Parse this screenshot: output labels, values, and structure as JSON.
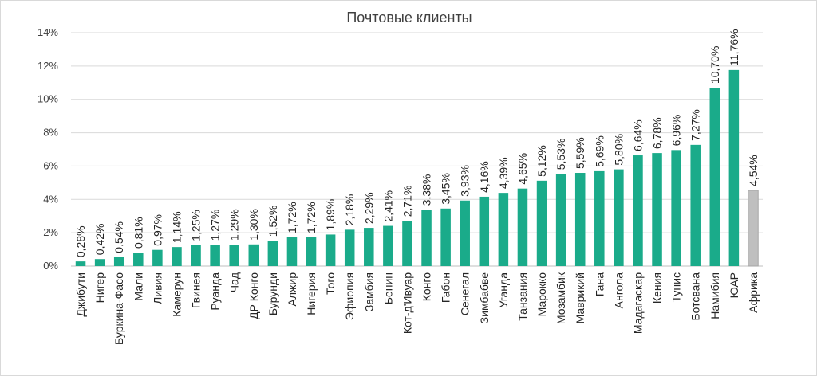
{
  "chart_data": {
    "type": "bar",
    "title": "Почтовые клиенты",
    "xlabel": "",
    "ylabel": "",
    "ylim": [
      0,
      14
    ],
    "yticks": [
      "0%",
      "2%",
      "4%",
      "6%",
      "8%",
      "10%",
      "12%",
      "14%"
    ],
    "grid": true,
    "legend": "none",
    "colors": {
      "bar": "#1aab8a",
      "highlight": "#bfbfbf",
      "grid": "#d9d9d9",
      "text": "#404040"
    },
    "categories": [
      "Джибути",
      "Нигер",
      "Буркина-Фасо",
      "Мали",
      "Ливия",
      "Камерун",
      "Гвинея",
      "Руанда",
      "Чад",
      "ДР Конго",
      "Бурунди",
      "Алжир",
      "Нигерия",
      "Того",
      "Эфиопия",
      "Замбия",
      "Бенин",
      "Кот-д'Ивуар",
      "Конго",
      "Габон",
      "Сенегал",
      "Зимбабве",
      "Уганда",
      "Танзания",
      "Марокко",
      "Мозамбик",
      "Маврикий",
      "Гана",
      "Ангола",
      "Мадагаскар",
      "Кения",
      "Тунис",
      "Ботсвана",
      "Намибия",
      "ЮАР",
      "Африка"
    ],
    "values": [
      0.28,
      0.42,
      0.54,
      0.81,
      0.97,
      1.14,
      1.25,
      1.27,
      1.29,
      1.3,
      1.52,
      1.72,
      1.72,
      1.89,
      2.18,
      2.29,
      2.41,
      2.71,
      3.38,
      3.45,
      3.93,
      4.16,
      4.39,
      4.65,
      5.12,
      5.53,
      5.59,
      5.69,
      5.8,
      6.64,
      6.78,
      6.96,
      7.27,
      10.7,
      11.76,
      4.54
    ],
    "labels": [
      "0,28%",
      "0,42%",
      "0,54%",
      "0,81%",
      "0,97%",
      "1,14%",
      "1,25%",
      "1,27%",
      "1,29%",
      "1,30%",
      "1,52%",
      "1,72%",
      "1,72%",
      "1,89%",
      "2,18%",
      "2,29%",
      "2,41%",
      "2,71%",
      "3,38%",
      "3,45%",
      "3,93%",
      "4,16%",
      "4,39%",
      "4,65%",
      "5,12%",
      "5,53%",
      "5,59%",
      "5,69%",
      "5,80%",
      "6,64%",
      "6,78%",
      "6,96%",
      "7,27%",
      "10,70%",
      "11,76%",
      "4,54%"
    ],
    "highlighted": [
      "Африка"
    ]
  }
}
